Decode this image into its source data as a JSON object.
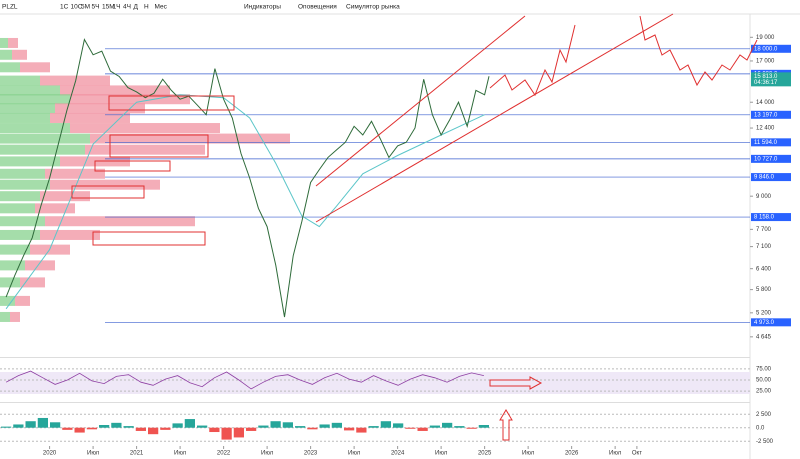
{
  "toolbar": {
    "symbol": "PLZL",
    "intervals": [
      "1С",
      "10С",
      "5М",
      "5Ч",
      "15М",
      "1Ч",
      "4Ч",
      "Д",
      "Н",
      "Мес"
    ],
    "indicators": "Индикаторы",
    "alerts": "Оповещения",
    "replay": "Симулятор рынка"
  },
  "chart": {
    "log_scale": true,
    "ylim": [
      4470,
      21200
    ],
    "xlim": [
      2019.43,
      2028.05
    ],
    "yticks": [
      {
        "value": 19000,
        "label": "19 000"
      },
      {
        "value": 17000,
        "label": "17 000"
      },
      {
        "value": 14000,
        "label": "14 000"
      },
      {
        "value": 12400,
        "label": "12 400"
      },
      {
        "value": 9000,
        "label": "9 000"
      },
      {
        "value": 7700,
        "label": "7 700"
      },
      {
        "value": 7100,
        "label": "7 100"
      },
      {
        "value": 6400,
        "label": "6 400"
      },
      {
        "value": 5800,
        "label": "5 800"
      },
      {
        "value": 5200,
        "label": "5 200"
      },
      {
        "value": 4645,
        "label": "4 645"
      }
    ],
    "xticks": [
      {
        "value": 2020,
        "label": "2020"
      },
      {
        "value": 2020.5,
        "label": "Июл"
      },
      {
        "value": 2021,
        "label": "2021"
      },
      {
        "value": 2021.5,
        "label": "Июл"
      },
      {
        "value": 2022,
        "label": "2022"
      },
      {
        "value": 2022.5,
        "label": "Июл"
      },
      {
        "value": 2023,
        "label": "2023"
      },
      {
        "value": 2023.5,
        "label": "Июл"
      },
      {
        "value": 2024,
        "label": "2024"
      },
      {
        "value": 2024.5,
        "label": "Июл"
      },
      {
        "value": 2025,
        "label": "2025"
      },
      {
        "value": 2025.5,
        "label": "Июл"
      },
      {
        "value": 2026,
        "label": "2026"
      },
      {
        "value": 2026.5,
        "label": "Июл"
      },
      {
        "value": 2026.75,
        "label": "Окт"
      }
    ],
    "levels": [
      {
        "value": 18000,
        "label": "18 000.0"
      },
      {
        "value": 16000,
        "label": "16 000.0"
      },
      {
        "value": 13197,
        "label": "13 197.0"
      },
      {
        "value": 11594,
        "label": "11 594.0"
      },
      {
        "value": 10727,
        "label": "10 727.0"
      },
      {
        "value": 9846,
        "label": "9 846.0"
      },
      {
        "value": 8158,
        "label": "8 158.0"
      },
      {
        "value": 4973,
        "label": "4 973.0"
      }
    ],
    "last_price": {
      "value": 15813,
      "label": "15 813.0",
      "timer": "04:36:17"
    },
    "price": {
      "color": "#2e6b3a",
      "x": [
        2019.5,
        2019.6,
        2019.7,
        2019.8,
        2019.9,
        2020.0,
        2020.1,
        2020.2,
        2020.3,
        2020.4,
        2020.5,
        2020.6,
        2020.7,
        2020.8,
        2020.9,
        2021.0,
        2021.1,
        2021.2,
        2021.3,
        2021.4,
        2021.5,
        2021.6,
        2021.7,
        2021.8,
        2021.9,
        2022.0,
        2022.1,
        2022.2,
        2022.3,
        2022.4,
        2022.5,
        2022.6,
        2022.7,
        2022.8,
        2022.9,
        2023.0,
        2023.1,
        2023.2,
        2023.3,
        2023.4,
        2023.5,
        2023.6,
        2023.7,
        2023.8,
        2023.9,
        2024.0,
        2024.1,
        2024.2,
        2024.3,
        2024.4,
        2024.5,
        2024.6,
        2024.7,
        2024.8,
        2024.9,
        2025.0,
        2025.05
      ],
      "values": [
        5600,
        6200,
        6800,
        7400,
        8600,
        9800,
        11500,
        13500,
        15500,
        18800,
        17500,
        17800,
        16200,
        15800,
        15000,
        14700,
        14300,
        14600,
        15600,
        14800,
        14200,
        14400,
        13800,
        13200,
        16400,
        14200,
        13000,
        11000,
        9800,
        8500,
        7800,
        6500,
        5100,
        6800,
        8000,
        9600,
        10200,
        10800,
        11200,
        11600,
        12500,
        12000,
        12800,
        11800,
        10800,
        11400,
        11600,
        12400,
        15600,
        13200,
        12000,
        12900,
        14000,
        12500,
        14800,
        14500,
        15813
      ]
    },
    "ma": {
      "color": "#5cc6c9",
      "x": [
        2019.5,
        2020.0,
        2020.5,
        2021.0,
        2021.5,
        2022.0,
        2022.3,
        2022.6,
        2022.9,
        2023.1,
        2023.3,
        2023.6,
        2024.0,
        2024.5,
        2025.0
      ],
      "values": [
        5300,
        7000,
        11500,
        14000,
        14500,
        14300,
        13000,
        10500,
        8200,
        7800,
        8600,
        10000,
        10900,
        12000,
        13200
      ]
    },
    "profile": {
      "levels": [
        18500,
        17500,
        16500,
        15500,
        14800,
        14200,
        13600,
        13000,
        12400,
        11800,
        11200,
        10600,
        10000,
        9500,
        9000,
        8500,
        8000,
        7500,
        7000,
        6500,
        6000,
        5500,
        5100
      ],
      "buy": [
        8,
        12,
        20,
        40,
        60,
        70,
        55,
        50,
        70,
        90,
        85,
        60,
        45,
        50,
        40,
        35,
        45,
        40,
        30,
        25,
        20,
        15,
        10
      ],
      "sell": [
        10,
        15,
        30,
        70,
        110,
        120,
        90,
        80,
        150,
        200,
        120,
        70,
        60,
        110,
        50,
        40,
        150,
        60,
        40,
        30,
        25,
        15,
        10
      ]
    }
  },
  "rsi": {
    "yticks": [
      {
        "value": 75,
        "label": "75.00"
      },
      {
        "value": 50,
        "label": "50.00"
      },
      {
        "value": 25,
        "label": "25.00"
      }
    ],
    "ylim": [
      5,
      95
    ],
    "values": [
      45,
      60,
      70,
      55,
      40,
      50,
      65,
      48,
      42,
      58,
      62,
      45,
      38,
      52,
      60,
      44,
      35,
      55,
      68,
      50,
      30,
      45,
      58,
      62,
      50,
      40,
      55,
      65,
      52,
      45,
      60,
      48,
      38,
      52,
      62,
      55,
      45,
      58,
      66,
      60
    ]
  },
  "macd": {
    "yticks": [
      {
        "value": 2500,
        "label": "2 500"
      },
      {
        "value": 0,
        "label": "0.0"
      },
      {
        "value": -2500,
        "label": "-2 500"
      }
    ],
    "ylim": [
      -3200,
      4200
    ],
    "values": [
      200,
      600,
      1200,
      1800,
      1000,
      -400,
      -900,
      -300,
      500,
      900,
      300,
      -600,
      -1200,
      -400,
      800,
      1600,
      400,
      -800,
      -2200,
      -1800,
      -600,
      400,
      1200,
      1000,
      300,
      -300,
      600,
      900,
      -500,
      -900,
      300,
      1200,
      800,
      -200,
      -600,
      400,
      900,
      300,
      -200,
      500
    ]
  }
}
